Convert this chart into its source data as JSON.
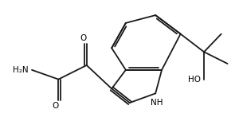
{
  "background": "#ffffff",
  "line_color": "#1a1a1a",
  "line_width": 1.3,
  "text_color": "#000000",
  "figsize": [
    3.0,
    1.57
  ],
  "dpi": 100,
  "xlim": [
    0,
    3.0
  ],
  "ylim": [
    0,
    1.57
  ]
}
